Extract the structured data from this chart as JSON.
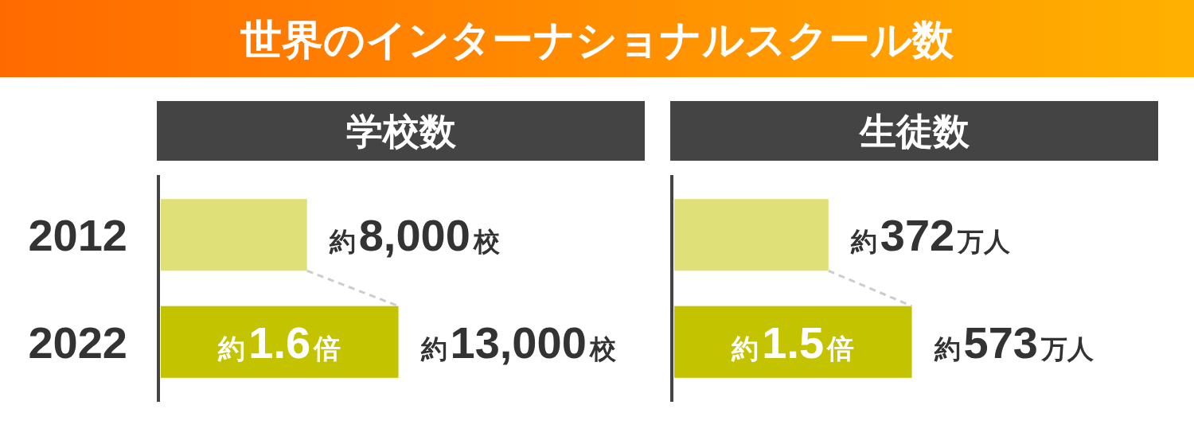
{
  "chart_data": [
    {
      "type": "other",
      "title": "世界のインターナショナルスクール数"
    },
    {
      "type": "bar",
      "orientation": "horizontal",
      "title": "学校数",
      "categories": [
        "2012",
        "2022"
      ],
      "values": [
        8000,
        13000
      ],
      "colors": [
        "#e0e078",
        "#c3c300"
      ],
      "value_labels": [
        "約8,000校",
        "約13,000校"
      ],
      "annotations": [
        "約1.6倍"
      ]
    },
    {
      "type": "bar",
      "orientation": "horizontal",
      "title": "生徒数",
      "categories": [
        null,
        null
      ],
      "values": [
        372,
        573
      ],
      "colors": [
        "#e0e078",
        "#c3c300"
      ],
      "value_labels": [
        "約372万人",
        "約573万人"
      ],
      "annotations": [
        "約1.5倍"
      ]
    }
  ]
}
